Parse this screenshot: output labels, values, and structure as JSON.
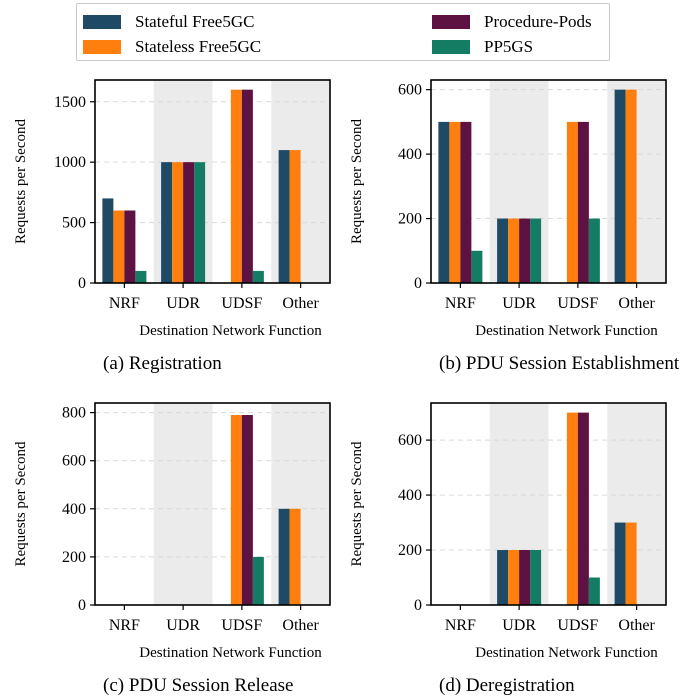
{
  "legend": {
    "items": [
      {
        "label": "Stateful Free5GC",
        "color": "#1f4a66"
      },
      {
        "label": "Stateless Free5GC",
        "color": "#ff7f0e"
      },
      {
        "label": "Procedure-Pods",
        "color": "#5e1242"
      },
      {
        "label": "PP5GS",
        "color": "#137c63"
      }
    ]
  },
  "chart_data": [
    {
      "type": "bar",
      "caption": "(a)  Registration",
      "xlabel": "Destination Network Function",
      "ylabel": "Requests per Second",
      "categories": [
        "NRF",
        "UDR",
        "UDSF",
        "Other"
      ],
      "ylim": [
        0,
        1680
      ],
      "yticks": [
        0,
        500,
        1000,
        1500
      ],
      "grid": true,
      "series": [
        {
          "name": "Stateful Free5GC",
          "values": [
            700,
            1000,
            0,
            1100
          ]
        },
        {
          "name": "Stateless Free5GC",
          "values": [
            600,
            1000,
            1600,
            1100
          ]
        },
        {
          "name": "Procedure-Pods",
          "values": [
            600,
            1000,
            1600,
            0
          ]
        },
        {
          "name": "PP5GS",
          "values": [
            100,
            1000,
            100,
            0
          ]
        }
      ]
    },
    {
      "type": "bar",
      "caption": "(b)  PDU Session Establishment",
      "xlabel": "Destination Network Function",
      "ylabel": "Requests per Second",
      "categories": [
        "NRF",
        "UDR",
        "UDSF",
        "Other"
      ],
      "ylim": [
        0,
        630
      ],
      "yticks": [
        0,
        200,
        400,
        600
      ],
      "grid": true,
      "series": [
        {
          "name": "Stateful Free5GC",
          "values": [
            500,
            200,
            0,
            600
          ]
        },
        {
          "name": "Stateless Free5GC",
          "values": [
            500,
            200,
            500,
            600
          ]
        },
        {
          "name": "Procedure-Pods",
          "values": [
            500,
            200,
            500,
            0
          ]
        },
        {
          "name": "PP5GS",
          "values": [
            100,
            200,
            200,
            0
          ]
        }
      ]
    },
    {
      "type": "bar",
      "caption": "(c)  PDU Session Release",
      "xlabel": "Destination Network Function",
      "ylabel": "Requests per Second",
      "categories": [
        "NRF",
        "UDR",
        "UDSF",
        "Other"
      ],
      "ylim": [
        0,
        840
      ],
      "yticks": [
        0,
        200,
        400,
        600,
        800
      ],
      "grid": true,
      "series": [
        {
          "name": "Stateful Free5GC",
          "values": [
            0,
            0,
            0,
            400
          ]
        },
        {
          "name": "Stateless Free5GC",
          "values": [
            0,
            0,
            790,
            400
          ]
        },
        {
          "name": "Procedure-Pods",
          "values": [
            0,
            0,
            790,
            0
          ]
        },
        {
          "name": "PP5GS",
          "values": [
            0,
            0,
            200,
            0
          ]
        }
      ]
    },
    {
      "type": "bar",
      "caption": "(d)  Deregistration",
      "xlabel": "Destination Network Function",
      "ylabel": "Requests per Second",
      "categories": [
        "NRF",
        "UDR",
        "UDSF",
        "Other"
      ],
      "ylim": [
        0,
        735
      ],
      "yticks": [
        0,
        200,
        400,
        600
      ],
      "grid": true,
      "series": [
        {
          "name": "Stateful Free5GC",
          "values": [
            0,
            200,
            0,
            300
          ]
        },
        {
          "name": "Stateless Free5GC",
          "values": [
            0,
            200,
            700,
            300
          ]
        },
        {
          "name": "Procedure-Pods",
          "values": [
            0,
            200,
            700,
            0
          ]
        },
        {
          "name": "PP5GS",
          "values": [
            0,
            200,
            100,
            0
          ]
        }
      ]
    }
  ]
}
